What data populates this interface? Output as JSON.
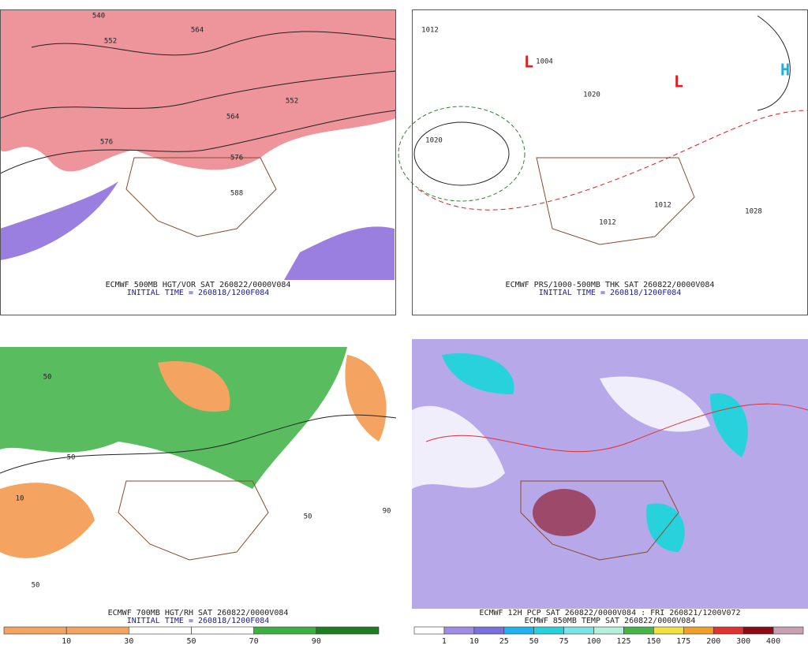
{
  "panels": [
    {
      "title": "ECMWF 500MB HGT/VOR SAT 260822/0000V084",
      "subtitle": "INITIAL TIME = 260818/1200F084",
      "contour_labels": [
        "540",
        "552",
        "564",
        "576",
        "552",
        "564",
        "576",
        "588"
      ]
    },
    {
      "title": "ECMWF PRS/1000-500MB THK SAT 260822/0000V084",
      "subtitle": "INITIAL TIME = 260818/1200F084",
      "contour_labels": [
        "1012",
        "1020",
        "1004",
        "1012",
        "1020",
        "1028",
        "1012",
        "H",
        "L",
        "L"
      ]
    },
    {
      "title": "ECMWF 700MB HGT/RH SAT 260822/0000V084",
      "subtitle": "INITIAL TIME = 260818/1200F084",
      "contour_labels": [
        "50",
        "10",
        "50",
        "90",
        "50",
        "50"
      ]
    },
    {
      "title": "ECMWF 12H PCP SAT 260822/0000V084 : FRI 260821/1200V072",
      "subtitle": "ECMWF 850MB TEMP SAT 260822/0000V084",
      "contour_labels": []
    }
  ],
  "colorbars": [
    {
      "colors": [
        "#f4a460",
        "#f4a460",
        "#ffffff",
        "#ffffff",
        "#3cb043",
        "#1e7d1e"
      ],
      "labels": [
        "10",
        "30",
        "50",
        "70",
        "90"
      ]
    },
    {
      "colors": [
        "#ffffff",
        "#a08ee6",
        "#7b6fe0",
        "#1eb4f0",
        "#28d2dc",
        "#78e6e6",
        "#b4f0dc",
        "#46b446",
        "#f0e13c",
        "#f0a028",
        "#e13232",
        "#8c0a14",
        "#c8a0b4"
      ],
      "labels": [
        "1",
        "10",
        "25",
        "50",
        "75",
        "100",
        "125",
        "150",
        "175",
        "200",
        "300",
        "400"
      ]
    }
  ]
}
